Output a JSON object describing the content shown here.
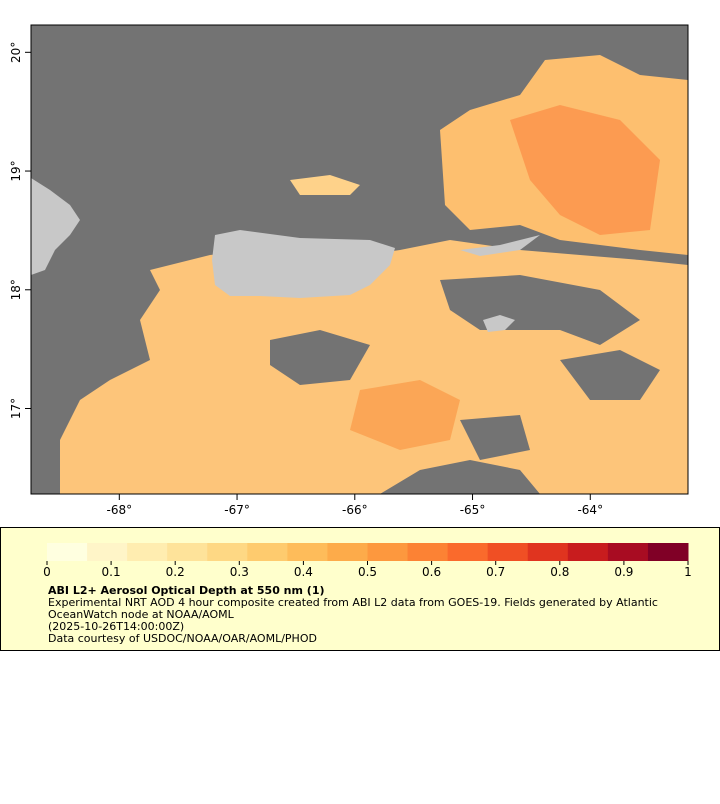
{
  "map": {
    "xlim": [
      -68.75,
      -63.17
    ],
    "ylim": [
      16.28,
      20.23
    ],
    "xticks": [
      {
        "value": -68,
        "label": "-68°"
      },
      {
        "value": -67,
        "label": "-67°"
      },
      {
        "value": -66,
        "label": "-66°"
      },
      {
        "value": -65,
        "label": "-65°"
      },
      {
        "value": -64,
        "label": "-64°"
      }
    ],
    "yticks": [
      {
        "value": 17,
        "label": "17°"
      },
      {
        "value": 18,
        "label": "18°"
      },
      {
        "value": 19,
        "label": "19°"
      },
      {
        "value": 20,
        "label": "20°"
      }
    ]
  },
  "colorbar": {
    "clim": [
      0,
      1
    ],
    "ticks": [
      0,
      0.1,
      0.2,
      0.3,
      0.4,
      0.5,
      0.6,
      0.7,
      0.8,
      0.9,
      1
    ],
    "colors": [
      "#ffffe0",
      "#fff5c8",
      "#ffedb0",
      "#fee39a",
      "#fed884",
      "#fecb6e",
      "#febc5a",
      "#fdab4a",
      "#fd983e",
      "#fc8234",
      "#fa6a2c",
      "#f04f24",
      "#e0341f",
      "#c81c1e",
      "#a80c22",
      "#800026"
    ],
    "title": "ABI L2+ Aerosol Optical Depth at 550 nm (1)",
    "lines": [
      "Experimental NRT AOD 4 hour composite created from ABI L2 data from GOES-19. Fields generated by Atlantic",
      "OceanWatch node at NOAA/AOML",
      "(2025-10-26T14:00:00Z)",
      "Data courtesy of USDOC/NOAA/OAR/AOML/PHOD"
    ]
  }
}
